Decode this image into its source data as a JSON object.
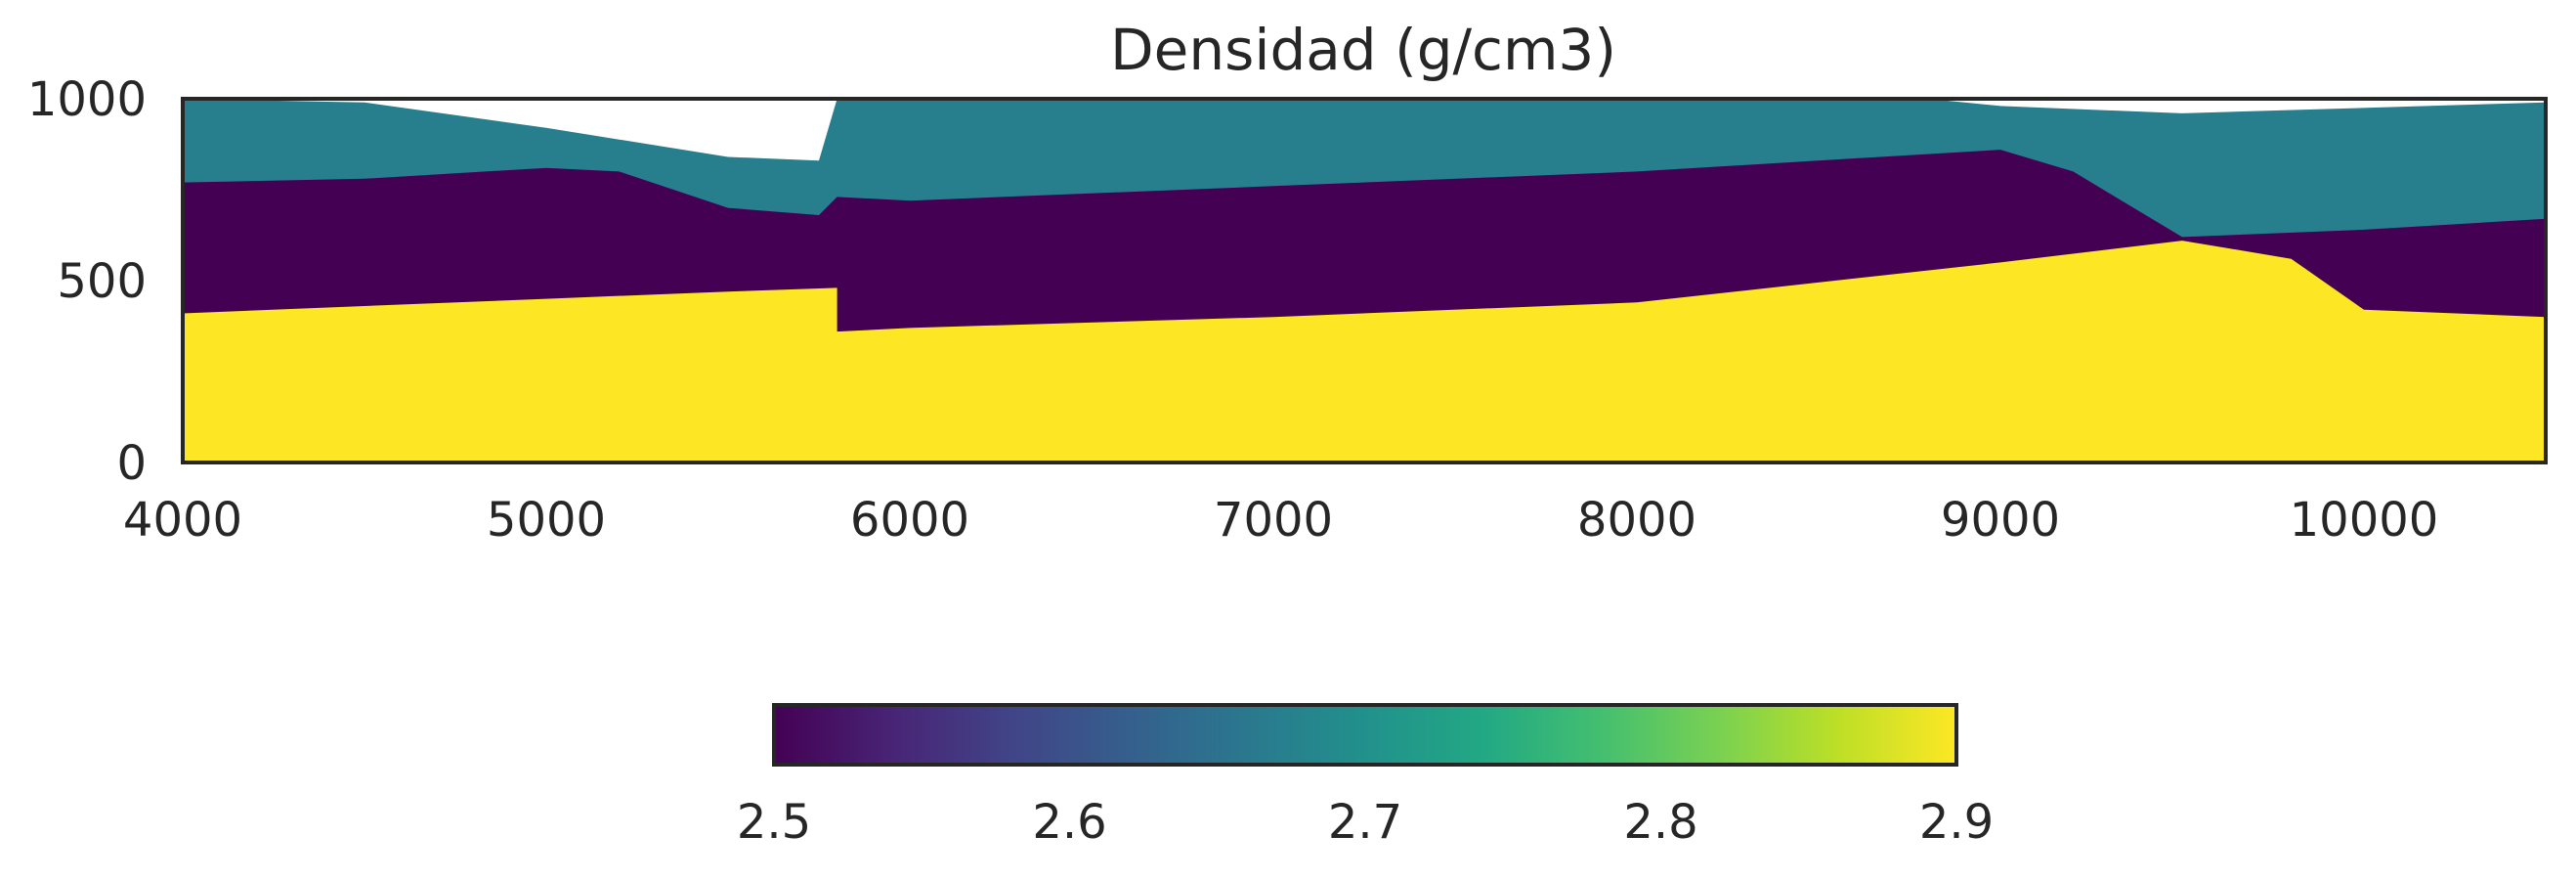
{
  "chart_data": {
    "type": "heatmap",
    "title": "Densidad (g/cm3)",
    "xlabel": "",
    "ylabel": "",
    "xlim": [
      4000,
      10500
    ],
    "ylim": [
      0,
      1000
    ],
    "x_ticks": [
      4000,
      5000,
      6000,
      7000,
      8000,
      9000,
      10000
    ],
    "y_ticks": [
      0,
      500,
      1000
    ],
    "grid": false,
    "colormap": "viridis",
    "colorbar": {
      "orientation": "horizontal",
      "placement": "bottom",
      "range": [
        2.5,
        2.9
      ],
      "ticks": [
        "2.5",
        "2.6",
        "2.7",
        "2.8",
        "2.9"
      ]
    },
    "layers": [
      {
        "density": 2.65,
        "color": "#277f8e",
        "role": "upper",
        "boundary": [
          [
            4000,
            1000
          ],
          [
            4500,
            990
          ],
          [
            5000,
            920
          ],
          [
            5500,
            840
          ],
          [
            5750,
            830
          ],
          [
            5800,
            1000
          ],
          [
            6000,
            1000
          ],
          [
            8800,
            1000
          ],
          [
            9000,
            980
          ],
          [
            9500,
            960
          ],
          [
            10500,
            990
          ]
        ]
      },
      {
        "density": 2.5,
        "color": "#440154",
        "role": "upper-middle",
        "boundary": [
          [
            4000,
            770
          ],
          [
            4500,
            780
          ],
          [
            5000,
            810
          ],
          [
            5200,
            800
          ],
          [
            5500,
            700
          ],
          [
            5750,
            680
          ],
          [
            5800,
            730
          ],
          [
            6000,
            720
          ],
          [
            7000,
            760
          ],
          [
            8000,
            800
          ],
          [
            9000,
            860
          ],
          [
            9200,
            800
          ],
          [
            9500,
            620
          ],
          [
            10000,
            640
          ],
          [
            10500,
            670
          ]
        ]
      },
      {
        "density": 2.9,
        "color": "#fde725",
        "role": "middle",
        "boundary": [
          [
            4000,
            410
          ],
          [
            4500,
            430
          ],
          [
            5000,
            450
          ],
          [
            5500,
            470
          ],
          [
            5800,
            480
          ],
          [
            5800,
            360
          ],
          [
            6000,
            370
          ],
          [
            7000,
            400
          ],
          [
            8000,
            440
          ],
          [
            9000,
            550
          ],
          [
            9500,
            610
          ],
          [
            9800,
            560
          ],
          [
            10000,
            420
          ],
          [
            10500,
            400
          ]
        ]
      },
      {
        "density": 2.65,
        "color": "#277f8e",
        "role": "base",
        "boundary": [
          [
            4000,
            0
          ],
          [
            10500,
            0
          ]
        ]
      }
    ]
  }
}
